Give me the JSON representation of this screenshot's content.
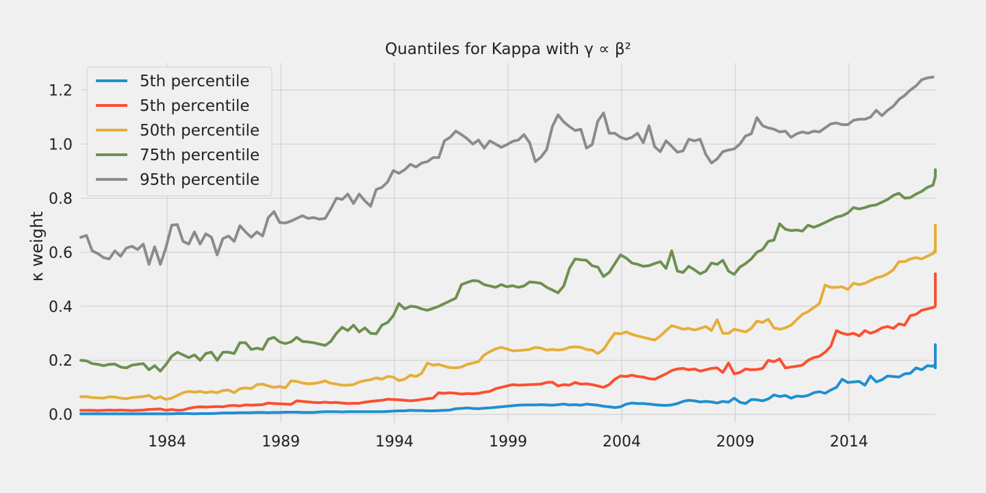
{
  "chart_data": {
    "type": "line",
    "title": "Quantiles for Kappa with γ ∝ β²",
    "xlabel": "",
    "ylabel": "κ weight",
    "xlim": [
      1980.2,
      2017.8
    ],
    "ylim": [
      -0.03,
      1.3
    ],
    "x_ticks": [
      1984,
      1989,
      1994,
      1999,
      2004,
      2009,
      2014
    ],
    "y_ticks": [
      0.0,
      0.2,
      0.4,
      0.6,
      0.8,
      1.0,
      1.2
    ],
    "y_tick_labels": [
      "0.0",
      "0.2",
      "0.4",
      "0.6",
      "0.8",
      "1.0",
      "1.2"
    ],
    "grid": true,
    "legend_position": "top-left",
    "x_start": 1980.2,
    "x_step": 0.25,
    "series": [
      {
        "name": "5th percentile",
        "color": "#1f8fd0",
        "values": [
          0.002,
          0.002,
          0.002,
          0.002,
          0.002,
          0.002,
          0.002,
          0.002,
          0.002,
          0.002,
          0.002,
          0.002,
          0.002,
          0.002,
          0.002,
          0.002,
          0.002,
          0.003,
          0.003,
          0.003,
          0.002,
          0.003,
          0.003,
          0.003,
          0.004,
          0.005,
          0.005,
          0.005,
          0.006,
          0.006,
          0.006,
          0.007,
          0.007,
          0.006,
          0.007,
          0.007,
          0.008,
          0.008,
          0.008,
          0.007,
          0.007,
          0.007,
          0.009,
          0.01,
          0.01,
          0.01,
          0.009,
          0.01,
          0.01,
          0.01,
          0.01,
          0.01,
          0.01,
          0.01,
          0.011,
          0.012,
          0.013,
          0.013,
          0.015,
          0.014,
          0.014,
          0.013,
          0.013,
          0.014,
          0.015,
          0.016,
          0.021,
          0.022,
          0.024,
          0.022,
          0.021,
          0.023,
          0.024,
          0.026,
          0.028,
          0.03,
          0.032,
          0.034,
          0.035,
          0.035,
          0.035,
          0.036,
          0.035,
          0.034,
          0.036,
          0.038,
          0.035,
          0.036,
          0.034,
          0.038,
          0.036,
          0.034,
          0.03,
          0.028,
          0.025,
          0.028,
          0.038,
          0.042,
          0.04,
          0.04,
          0.038,
          0.036,
          0.034,
          0.033,
          0.035,
          0.04,
          0.048,
          0.052,
          0.05,
          0.046,
          0.048,
          0.046,
          0.042,
          0.048,
          0.045,
          0.06,
          0.045,
          0.04,
          0.055,
          0.054,
          0.05,
          0.057,
          0.072,
          0.066,
          0.07,
          0.06,
          0.068,
          0.066,
          0.07,
          0.08,
          0.084,
          0.078,
          0.09,
          0.1,
          0.13,
          0.118,
          0.12,
          0.122,
          0.108,
          0.142,
          0.12,
          0.128,
          0.142,
          0.14,
          0.138,
          0.15,
          0.152,
          0.172,
          0.165,
          0.18,
          0.178,
          0.185,
          0.195,
          0.19,
          0.2,
          0.205,
          0.19,
          0.172,
          0.185,
          0.195,
          0.215,
          0.228,
          0.255,
          0.255,
          0.258,
          0.242
        ]
      },
      {
        "name": "5th percentile",
        "color": "#fc4f30",
        "values": [
          0.015,
          0.015,
          0.015,
          0.014,
          0.015,
          0.016,
          0.015,
          0.016,
          0.015,
          0.014,
          0.015,
          0.016,
          0.018,
          0.019,
          0.02,
          0.015,
          0.018,
          0.015,
          0.016,
          0.022,
          0.026,
          0.028,
          0.027,
          0.028,
          0.029,
          0.028,
          0.032,
          0.033,
          0.031,
          0.035,
          0.034,
          0.035,
          0.036,
          0.042,
          0.04,
          0.039,
          0.038,
          0.037,
          0.05,
          0.048,
          0.046,
          0.044,
          0.043,
          0.045,
          0.043,
          0.044,
          0.042,
          0.04,
          0.041,
          0.041,
          0.045,
          0.048,
          0.05,
          0.052,
          0.056,
          0.055,
          0.054,
          0.052,
          0.05,
          0.052,
          0.055,
          0.058,
          0.06,
          0.08,
          0.078,
          0.08,
          0.078,
          0.075,
          0.077,
          0.076,
          0.078,
          0.082,
          0.085,
          0.095,
          0.1,
          0.105,
          0.11,
          0.108,
          0.109,
          0.11,
          0.111,
          0.112,
          0.118,
          0.119,
          0.105,
          0.11,
          0.108,
          0.118,
          0.112,
          0.113,
          0.11,
          0.105,
          0.1,
          0.11,
          0.13,
          0.142,
          0.14,
          0.145,
          0.14,
          0.138,
          0.132,
          0.13,
          0.14,
          0.15,
          0.162,
          0.168,
          0.17,
          0.165,
          0.168,
          0.16,
          0.165,
          0.17,
          0.172,
          0.155,
          0.19,
          0.15,
          0.155,
          0.168,
          0.165,
          0.166,
          0.17,
          0.2,
          0.195,
          0.205,
          0.172,
          0.175,
          0.178,
          0.182,
          0.2,
          0.21,
          0.215,
          0.23,
          0.252,
          0.31,
          0.3,
          0.295,
          0.3,
          0.29,
          0.31,
          0.3,
          0.308,
          0.32,
          0.325,
          0.318,
          0.335,
          0.33,
          0.365,
          0.37,
          0.385,
          0.39,
          0.395,
          0.4,
          0.405,
          0.425,
          0.43,
          0.425,
          0.415,
          0.435,
          0.45,
          0.46,
          0.47,
          0.5,
          0.51,
          0.52,
          0.518
        ]
      },
      {
        "name": "50th percentile",
        "color": "#e5ae38",
        "values": [
          0.065,
          0.066,
          0.062,
          0.061,
          0.06,
          0.065,
          0.064,
          0.06,
          0.058,
          0.062,
          0.064,
          0.066,
          0.07,
          0.058,
          0.065,
          0.055,
          0.06,
          0.07,
          0.08,
          0.085,
          0.082,
          0.085,
          0.08,
          0.084,
          0.08,
          0.088,
          0.09,
          0.08,
          0.095,
          0.098,
          0.095,
          0.11,
          0.112,
          0.105,
          0.1,
          0.103,
          0.098,
          0.124,
          0.122,
          0.116,
          0.113,
          0.114,
          0.118,
          0.124,
          0.115,
          0.112,
          0.108,
          0.108,
          0.11,
          0.12,
          0.125,
          0.128,
          0.135,
          0.13,
          0.14,
          0.138,
          0.125,
          0.13,
          0.145,
          0.14,
          0.152,
          0.19,
          0.182,
          0.185,
          0.178,
          0.173,
          0.172,
          0.175,
          0.185,
          0.19,
          0.195,
          0.22,
          0.232,
          0.242,
          0.248,
          0.242,
          0.235,
          0.236,
          0.238,
          0.24,
          0.248,
          0.245,
          0.238,
          0.24,
          0.238,
          0.24,
          0.248,
          0.25,
          0.248,
          0.24,
          0.238,
          0.225,
          0.24,
          0.272,
          0.3,
          0.298,
          0.305,
          0.296,
          0.29,
          0.285,
          0.28,
          0.275,
          0.29,
          0.31,
          0.328,
          0.322,
          0.315,
          0.318,
          0.312,
          0.318,
          0.325,
          0.31,
          0.35,
          0.3,
          0.3,
          0.315,
          0.31,
          0.305,
          0.318,
          0.345,
          0.34,
          0.352,
          0.32,
          0.315,
          0.32,
          0.33,
          0.35,
          0.37,
          0.38,
          0.395,
          0.41,
          0.478,
          0.47,
          0.47,
          0.472,
          0.462,
          0.485,
          0.48,
          0.485,
          0.495,
          0.505,
          0.51,
          0.52,
          0.535,
          0.565,
          0.565,
          0.575,
          0.58,
          0.575,
          0.585,
          0.595,
          0.61,
          0.615,
          0.605,
          0.6,
          0.615,
          0.625,
          0.64,
          0.645,
          0.672,
          0.69,
          0.698,
          0.7
        ]
      },
      {
        "name": "75th percentile",
        "color": "#6d904f",
        "values": [
          0.2,
          0.198,
          0.188,
          0.185,
          0.18,
          0.185,
          0.186,
          0.175,
          0.172,
          0.182,
          0.185,
          0.188,
          0.165,
          0.18,
          0.16,
          0.185,
          0.215,
          0.23,
          0.22,
          0.21,
          0.22,
          0.2,
          0.225,
          0.23,
          0.2,
          0.23,
          0.23,
          0.225,
          0.265,
          0.265,
          0.24,
          0.245,
          0.24,
          0.278,
          0.285,
          0.268,
          0.262,
          0.268,
          0.285,
          0.27,
          0.268,
          0.265,
          0.26,
          0.255,
          0.27,
          0.3,
          0.322,
          0.31,
          0.33,
          0.305,
          0.32,
          0.3,
          0.298,
          0.33,
          0.34,
          0.365,
          0.41,
          0.39,
          0.4,
          0.398,
          0.39,
          0.385,
          0.392,
          0.4,
          0.41,
          0.42,
          0.43,
          0.48,
          0.488,
          0.495,
          0.493,
          0.48,
          0.475,
          0.47,
          0.48,
          0.472,
          0.476,
          0.47,
          0.475,
          0.49,
          0.488,
          0.485,
          0.47,
          0.46,
          0.45,
          0.475,
          0.54,
          0.575,
          0.572,
          0.57,
          0.55,
          0.545,
          0.51,
          0.525,
          0.558,
          0.59,
          0.578,
          0.56,
          0.555,
          0.548,
          0.55,
          0.558,
          0.565,
          0.54,
          0.605,
          0.53,
          0.525,
          0.548,
          0.535,
          0.52,
          0.53,
          0.56,
          0.555,
          0.57,
          0.53,
          0.518,
          0.545,
          0.558,
          0.575,
          0.6,
          0.61,
          0.64,
          0.645,
          0.705,
          0.685,
          0.68,
          0.682,
          0.678,
          0.7,
          0.692,
          0.7,
          0.71,
          0.72,
          0.73,
          0.735,
          0.745,
          0.765,
          0.76,
          0.765,
          0.772,
          0.775,
          0.785,
          0.795,
          0.81,
          0.818,
          0.8,
          0.802,
          0.815,
          0.825,
          0.84,
          0.848,
          0.88,
          0.895,
          0.9,
          0.905
        ]
      },
      {
        "name": "95th percentile",
        "color": "#8b8b8b",
        "values": [
          0.655,
          0.662,
          0.605,
          0.595,
          0.58,
          0.575,
          0.605,
          0.585,
          0.615,
          0.622,
          0.61,
          0.63,
          0.555,
          0.62,
          0.555,
          0.618,
          0.7,
          0.702,
          0.64,
          0.63,
          0.675,
          0.63,
          0.668,
          0.655,
          0.59,
          0.65,
          0.66,
          0.64,
          0.698,
          0.675,
          0.655,
          0.675,
          0.66,
          0.728,
          0.75,
          0.71,
          0.708,
          0.715,
          0.725,
          0.735,
          0.725,
          0.728,
          0.722,
          0.725,
          0.76,
          0.8,
          0.795,
          0.815,
          0.78,
          0.815,
          0.79,
          0.77,
          0.832,
          0.84,
          0.86,
          0.902,
          0.892,
          0.905,
          0.925,
          0.915,
          0.93,
          0.935,
          0.95,
          0.95,
          1.012,
          1.025,
          1.048,
          1.035,
          1.02,
          1.0,
          1.015,
          0.985,
          1.012,
          1.0,
          0.988,
          0.998,
          1.01,
          1.015,
          1.035,
          1.005,
          0.935,
          0.952,
          0.98,
          1.065,
          1.108,
          1.082,
          1.065,
          1.05,
          1.055,
          0.985,
          0.998,
          1.085,
          1.115,
          1.04,
          1.04,
          1.025,
          1.018,
          1.025,
          1.04,
          1.005,
          1.068,
          0.99,
          0.972,
          1.012,
          0.992,
          0.97,
          0.975,
          1.018,
          1.012,
          1.018,
          0.962,
          0.93,
          0.945,
          0.972,
          0.978,
          0.982,
          1.0,
          1.03,
          1.038,
          1.098,
          1.068,
          1.06,
          1.055,
          1.045,
          1.048,
          1.025,
          1.038,
          1.045,
          1.04,
          1.048,
          1.045,
          1.06,
          1.075,
          1.078,
          1.072,
          1.072,
          1.088,
          1.092,
          1.092,
          1.1,
          1.125,
          1.105,
          1.125,
          1.14,
          1.165,
          1.18,
          1.2,
          1.215,
          1.238,
          1.245,
          1.248
        ]
      }
    ]
  }
}
